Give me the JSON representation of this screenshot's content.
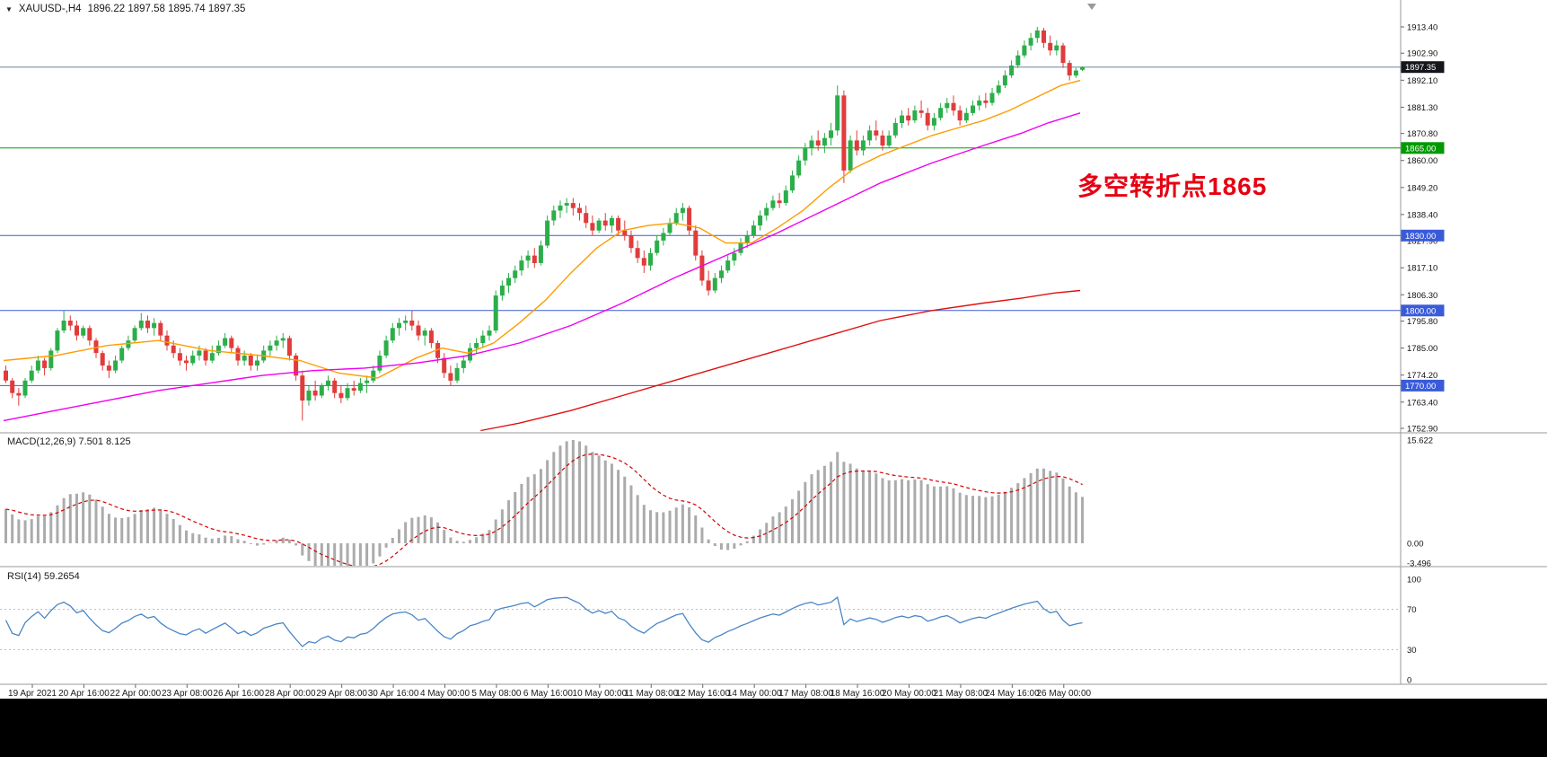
{
  "header": {
    "dropdown_icon": "▼",
    "symbol_period": "XAUUSD-,H4",
    "ohlc_values": "1896.22 1897.58 1895.74 1897.35"
  },
  "indicators": {
    "macd_label": "MACD(12,26,9) 7.501 8.125",
    "rsi_label": "RSI(14) 59.2654"
  },
  "annotation": {
    "text": "多空转折点1865",
    "color": "#e60012"
  },
  "colors": {
    "candle_up": "#2bae4a",
    "candle_down": "#e13b3b",
    "pane_border": "#9a9a9a",
    "axis_text": "#111111",
    "macd_hist": "#ababab",
    "macd_signal": "#d40000",
    "rsi_line": "#4a86c8",
    "rsi_levels": "#b8b8c8"
  },
  "chart_data": {
    "type": "candlestick",
    "symbol": "XAUUSD-",
    "timeframe": "H4",
    "current_ohlc": {
      "open": 1896.22,
      "high": 1897.58,
      "low": 1895.74,
      "close": 1897.35
    },
    "y_range": [
      1752.9,
      1913.4
    ],
    "candles": [
      [
        1776,
        1778,
        1771,
        1772
      ],
      [
        1772,
        1773,
        1765,
        1767
      ],
      [
        1767,
        1769,
        1762,
        1766
      ],
      [
        1766,
        1773,
        1765,
        1772
      ],
      [
        1772,
        1778,
        1771,
        1776
      ],
      [
        1776,
        1782,
        1775,
        1780
      ],
      [
        1780,
        1781,
        1774,
        1777
      ],
      [
        1777,
        1785,
        1776,
        1784
      ],
      [
        1784,
        1793,
        1783,
        1792
      ],
      [
        1792,
        1800,
        1791,
        1796
      ],
      [
        1796,
        1798,
        1792,
        1794
      ],
      [
        1794,
        1796,
        1788,
        1790
      ],
      [
        1790,
        1794,
        1789,
        1793
      ],
      [
        1793,
        1794,
        1786,
        1788
      ],
      [
        1788,
        1789,
        1781,
        1783
      ],
      [
        1783,
        1784,
        1776,
        1778
      ],
      [
        1778,
        1780,
        1773,
        1776
      ],
      [
        1776,
        1782,
        1775,
        1780
      ],
      [
        1780,
        1786,
        1779,
        1785
      ],
      [
        1785,
        1790,
        1784,
        1788
      ],
      [
        1788,
        1794,
        1787,
        1793
      ],
      [
        1793,
        1799,
        1792,
        1796
      ],
      [
        1796,
        1798,
        1791,
        1793
      ],
      [
        1793,
        1797,
        1790,
        1795
      ],
      [
        1795,
        1796,
        1788,
        1790
      ],
      [
        1790,
        1792,
        1784,
        1786
      ],
      [
        1786,
        1788,
        1781,
        1783
      ],
      [
        1783,
        1785,
        1778,
        1780
      ],
      [
        1780,
        1782,
        1776,
        1779
      ],
      [
        1779,
        1784,
        1778,
        1782
      ],
      [
        1782,
        1786,
        1780,
        1784
      ],
      [
        1784,
        1785,
        1778,
        1780
      ],
      [
        1780,
        1786,
        1779,
        1783
      ],
      [
        1783,
        1788,
        1782,
        1786
      ],
      [
        1786,
        1791,
        1785,
        1789
      ],
      [
        1789,
        1790,
        1783,
        1785
      ],
      [
        1785,
        1786,
        1778,
        1780
      ],
      [
        1780,
        1784,
        1778,
        1782
      ],
      [
        1782,
        1783,
        1776,
        1778
      ],
      [
        1778,
        1782,
        1776,
        1780
      ],
      [
        1780,
        1786,
        1779,
        1784
      ],
      [
        1784,
        1788,
        1782,
        1786
      ],
      [
        1786,
        1790,
        1784,
        1788
      ],
      [
        1788,
        1791,
        1785,
        1789
      ],
      [
        1789,
        1790,
        1780,
        1782
      ],
      [
        1782,
        1783,
        1772,
        1774
      ],
      [
        1774,
        1776,
        1756,
        1764
      ],
      [
        1764,
        1770,
        1762,
        1768
      ],
      [
        1768,
        1772,
        1764,
        1766
      ],
      [
        1766,
        1771,
        1765,
        1770
      ],
      [
        1770,
        1774,
        1768,
        1772
      ],
      [
        1772,
        1773,
        1765,
        1767
      ],
      [
        1767,
        1770,
        1763,
        1765
      ],
      [
        1765,
        1771,
        1764,
        1769
      ],
      [
        1769,
        1772,
        1766,
        1768
      ],
      [
        1768,
        1773,
        1767,
        1771
      ],
      [
        1771,
        1774,
        1767,
        1772
      ],
      [
        1772,
        1778,
        1771,
        1776
      ],
      [
        1776,
        1784,
        1775,
        1782
      ],
      [
        1782,
        1790,
        1781,
        1788
      ],
      [
        1788,
        1795,
        1787,
        1793
      ],
      [
        1793,
        1797,
        1790,
        1795
      ],
      [
        1795,
        1798,
        1792,
        1796
      ],
      [
        1796,
        1800,
        1792,
        1794
      ],
      [
        1794,
        1796,
        1788,
        1790
      ],
      [
        1790,
        1793,
        1786,
        1792
      ],
      [
        1792,
        1793,
        1785,
        1787
      ],
      [
        1787,
        1788,
        1779,
        1781
      ],
      [
        1781,
        1783,
        1773,
        1775
      ],
      [
        1775,
        1778,
        1770,
        1772
      ],
      [
        1772,
        1779,
        1771,
        1777
      ],
      [
        1777,
        1782,
        1775,
        1780
      ],
      [
        1780,
        1787,
        1779,
        1785
      ],
      [
        1785,
        1789,
        1783,
        1787
      ],
      [
        1787,
        1792,
        1785,
        1790
      ],
      [
        1790,
        1794,
        1788,
        1792
      ],
      [
        1792,
        1808,
        1791,
        1806
      ],
      [
        1806,
        1812,
        1804,
        1810
      ],
      [
        1810,
        1815,
        1807,
        1813
      ],
      [
        1813,
        1818,
        1811,
        1816
      ],
      [
        1816,
        1822,
        1814,
        1820
      ],
      [
        1820,
        1824,
        1817,
        1822
      ],
      [
        1822,
        1825,
        1817,
        1819
      ],
      [
        1819,
        1828,
        1818,
        1826
      ],
      [
        1826,
        1838,
        1825,
        1836
      ],
      [
        1836,
        1842,
        1834,
        1840
      ],
      [
        1840,
        1844,
        1837,
        1842
      ],
      [
        1842,
        1845,
        1839,
        1843
      ],
      [
        1843,
        1845,
        1838,
        1841
      ],
      [
        1841,
        1843,
        1836,
        1839
      ],
      [
        1839,
        1842,
        1833,
        1835
      ],
      [
        1835,
        1838,
        1830,
        1832
      ],
      [
        1832,
        1837,
        1831,
        1836
      ],
      [
        1836,
        1839,
        1832,
        1834
      ],
      [
        1834,
        1838,
        1831,
        1837
      ],
      [
        1837,
        1838,
        1830,
        1832
      ],
      [
        1832,
        1836,
        1828,
        1830
      ],
      [
        1830,
        1832,
        1823,
        1825
      ],
      [
        1825,
        1828,
        1819,
        1821
      ],
      [
        1821,
        1824,
        1815,
        1818
      ],
      [
        1818,
        1825,
        1816,
        1823
      ],
      [
        1823,
        1830,
        1822,
        1828
      ],
      [
        1828,
        1833,
        1826,
        1831
      ],
      [
        1831,
        1837,
        1830,
        1835
      ],
      [
        1835,
        1841,
        1834,
        1839
      ],
      [
        1839,
        1843,
        1836,
        1841
      ],
      [
        1841,
        1842,
        1830,
        1832
      ],
      [
        1832,
        1834,
        1820,
        1822
      ],
      [
        1822,
        1824,
        1810,
        1812
      ],
      [
        1812,
        1816,
        1806,
        1808
      ],
      [
        1808,
        1815,
        1807,
        1813
      ],
      [
        1813,
        1818,
        1811,
        1816
      ],
      [
        1816,
        1822,
        1815,
        1820
      ],
      [
        1820,
        1825,
        1818,
        1823
      ],
      [
        1823,
        1829,
        1822,
        1827
      ],
      [
        1827,
        1832,
        1825,
        1830
      ],
      [
        1830,
        1836,
        1829,
        1834
      ],
      [
        1834,
        1840,
        1832,
        1838
      ],
      [
        1838,
        1843,
        1836,
        1841
      ],
      [
        1841,
        1846,
        1840,
        1844
      ],
      [
        1844,
        1847,
        1841,
        1843
      ],
      [
        1843,
        1850,
        1842,
        1848
      ],
      [
        1848,
        1856,
        1847,
        1854
      ],
      [
        1854,
        1862,
        1853,
        1860
      ],
      [
        1860,
        1867,
        1858,
        1865
      ],
      [
        1865,
        1870,
        1862,
        1868
      ],
      [
        1868,
        1872,
        1864,
        1866
      ],
      [
        1866,
        1871,
        1863,
        1869
      ],
      [
        1869,
        1875,
        1866,
        1872
      ],
      [
        1872,
        1890,
        1870,
        1886
      ],
      [
        1886,
        1888,
        1851,
        1856
      ],
      [
        1856,
        1870,
        1855,
        1868
      ],
      [
        1868,
        1872,
        1862,
        1864
      ],
      [
        1864,
        1870,
        1862,
        1868
      ],
      [
        1868,
        1874,
        1866,
        1872
      ],
      [
        1872,
        1876,
        1868,
        1870
      ],
      [
        1870,
        1872,
        1864,
        1866
      ],
      [
        1866,
        1872,
        1865,
        1870
      ],
      [
        1870,
        1877,
        1869,
        1875
      ],
      [
        1875,
        1880,
        1873,
        1878
      ],
      [
        1878,
        1881,
        1874,
        1876
      ],
      [
        1876,
        1882,
        1875,
        1880
      ],
      [
        1880,
        1884,
        1877,
        1879
      ],
      [
        1879,
        1881,
        1872,
        1874
      ],
      [
        1874,
        1879,
        1872,
        1877
      ],
      [
        1877,
        1883,
        1876,
        1881
      ],
      [
        1881,
        1885,
        1879,
        1883
      ],
      [
        1883,
        1886,
        1878,
        1880
      ],
      [
        1880,
        1882,
        1874,
        1876
      ],
      [
        1876,
        1881,
        1875,
        1879
      ],
      [
        1879,
        1884,
        1878,
        1882
      ],
      [
        1882,
        1886,
        1880,
        1884
      ],
      [
        1884,
        1887,
        1881,
        1883
      ],
      [
        1883,
        1889,
        1882,
        1887
      ],
      [
        1887,
        1892,
        1886,
        1890
      ],
      [
        1890,
        1896,
        1889,
        1894
      ],
      [
        1894,
        1900,
        1893,
        1898
      ],
      [
        1898,
        1904,
        1897,
        1902
      ],
      [
        1902,
        1908,
        1901,
        1906
      ],
      [
        1906,
        1911,
        1904,
        1909
      ],
      [
        1909,
        1913.4,
        1907,
        1912
      ],
      [
        1912,
        1913,
        1905,
        1907
      ],
      [
        1907,
        1910,
        1902,
        1904
      ],
      [
        1904,
        1908,
        1902,
        1906
      ],
      [
        1906,
        1907,
        1897,
        1899
      ],
      [
        1899,
        1900,
        1892,
        1894
      ],
      [
        1894,
        1897,
        1893,
        1896
      ],
      [
        1896.22,
        1897.58,
        1895.74,
        1897.35
      ]
    ],
    "overlays": [
      {
        "name": "ma-fast-orange-line",
        "color": "#ff9c00",
        "points": [
          [
            0,
            1780
          ],
          [
            8,
            1782
          ],
          [
            16,
            1786
          ],
          [
            24,
            1788
          ],
          [
            32,
            1784
          ],
          [
            40,
            1782
          ],
          [
            46,
            1780
          ],
          [
            52,
            1775
          ],
          [
            58,
            1773
          ],
          [
            64,
            1781
          ],
          [
            68,
            1785
          ],
          [
            72,
            1783
          ],
          [
            76,
            1787
          ],
          [
            80,
            1795
          ],
          [
            84,
            1804
          ],
          [
            88,
            1815
          ],
          [
            92,
            1825
          ],
          [
            96,
            1832
          ],
          [
            100,
            1834
          ],
          [
            104,
            1835
          ],
          [
            108,
            1833
          ],
          [
            112,
            1827
          ],
          [
            116,
            1827
          ],
          [
            120,
            1833
          ],
          [
            124,
            1840
          ],
          [
            128,
            1849
          ],
          [
            132,
            1857
          ],
          [
            136,
            1862
          ],
          [
            140,
            1866
          ],
          [
            144,
            1870
          ],
          [
            148,
            1873
          ],
          [
            152,
            1876
          ],
          [
            156,
            1880
          ],
          [
            160,
            1885
          ],
          [
            164,
            1890
          ],
          [
            167,
            1892
          ]
        ]
      },
      {
        "name": "ma-mid-magenta-line",
        "color": "#f000f0",
        "points": [
          [
            0,
            1756
          ],
          [
            8,
            1760
          ],
          [
            16,
            1764
          ],
          [
            24,
            1768
          ],
          [
            32,
            1771
          ],
          [
            40,
            1774
          ],
          [
            48,
            1776
          ],
          [
            56,
            1777
          ],
          [
            64,
            1779
          ],
          [
            72,
            1782
          ],
          [
            80,
            1787
          ],
          [
            88,
            1794
          ],
          [
            96,
            1803
          ],
          [
            104,
            1813
          ],
          [
            112,
            1822
          ],
          [
            120,
            1831
          ],
          [
            128,
            1841
          ],
          [
            136,
            1851
          ],
          [
            144,
            1859
          ],
          [
            152,
            1866
          ],
          [
            158,
            1871
          ],
          [
            162,
            1875
          ],
          [
            167,
            1879
          ]
        ]
      },
      {
        "name": "ma-slow-red-line",
        "color": "#e01010",
        "points": [
          [
            74,
            1752
          ],
          [
            80,
            1755
          ],
          [
            88,
            1760
          ],
          [
            96,
            1766
          ],
          [
            104,
            1772
          ],
          [
            112,
            1778
          ],
          [
            120,
            1784
          ],
          [
            128,
            1790
          ],
          [
            136,
            1796
          ],
          [
            144,
            1800
          ],
          [
            152,
            1803
          ],
          [
            158,
            1805
          ],
          [
            163,
            1807
          ],
          [
            167,
            1808
          ]
        ]
      }
    ],
    "hlines": [
      {
        "price": 1897.35,
        "label": "1897.35",
        "line_color": "#6b84a0",
        "box_color": "#14161c",
        "kind": "current-price-line"
      },
      {
        "price": 1865.0,
        "label": "1865.00",
        "line_color": "#00a000",
        "box_color": "#009a00",
        "kind": "support-line"
      },
      {
        "price": 1830.0,
        "label": "1830.00",
        "line_color": "#3a5bd9",
        "box_color": "#3a5bd9",
        "kind": "support-line"
      },
      {
        "price": 1800.0,
        "label": "1800.00",
        "line_color": "#3a5bd9",
        "box_color": "#3a5bd9",
        "kind": "support-line"
      },
      {
        "price": 1770.0,
        "label": "1770.00",
        "line_color": "#3a5bd9",
        "box_color": "#3a5bd9",
        "kind": "support-line"
      }
    ],
    "macd": {
      "params": [
        12,
        26,
        9
      ],
      "main_value": 7.501,
      "signal_value": 8.125,
      "axis_max": 15.622,
      "axis_min": -3.496,
      "axis_labels": [
        "15.622",
        "0.00",
        "-3.496"
      ]
    },
    "rsi": {
      "period": 14,
      "value": 59.2654,
      "levels": [
        70,
        30
      ],
      "axis_labels": [
        "100",
        "70",
        "30",
        "0"
      ]
    },
    "axes": {
      "price_ticks": [
        "1913.40",
        "1902.90",
        "1892.10",
        "1881.30",
        "1870.80",
        "1860.00",
        "1849.20",
        "1838.40",
        "1827.90",
        "1817.10",
        "1806.30",
        "1795.80",
        "1785.00",
        "1774.20",
        "1763.40",
        "1752.90"
      ],
      "time_labels": [
        "19 Apr 2021",
        "20 Apr 16:00",
        "22 Apr 00:00",
        "23 Apr 08:00",
        "26 Apr 16:00",
        "28 Apr 00:00",
        "29 Apr 08:00",
        "30 Apr 16:00",
        "4 May 00:00",
        "5 May 08:00",
        "6 May 16:00",
        "10 May 00:00",
        "11 May 08:00",
        "12 May 16:00",
        "14 May 00:00",
        "17 May 08:00",
        "18 May 16:00",
        "20 May 00:00",
        "21 May 08:00",
        "24 May 16:00",
        "26 May 00:00"
      ]
    }
  }
}
